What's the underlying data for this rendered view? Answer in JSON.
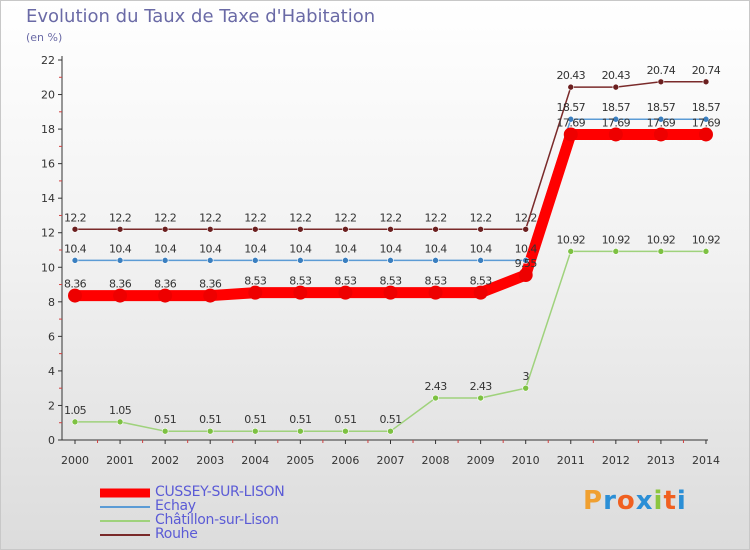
{
  "title": "Evolution du Taux de Taxe d'Habitation",
  "unit_label": "(en %)",
  "logo": {
    "text": "Proxiti",
    "letter_colors": [
      "#f0a030",
      "#2b8fd6",
      "#f06020",
      "#2b8fd6",
      "#8cc63f",
      "#f06020",
      "#2b8fd6"
    ]
  },
  "chart_data": {
    "type": "line",
    "title": "Evolution du Taux de Taxe d'Habitation",
    "ylabel": "(en %)",
    "xlabel": "",
    "ylim": [
      0,
      22
    ],
    "yticks": [
      0,
      2,
      4,
      6,
      8,
      10,
      12,
      14,
      16,
      18,
      20,
      22
    ],
    "grid": false,
    "legend_position": "bottom-left",
    "categories": [
      "2000",
      "2001",
      "2002",
      "2003",
      "2004",
      "2005",
      "2006",
      "2007",
      "2008",
      "2009",
      "2010",
      "2011",
      "2012",
      "2013",
      "2014"
    ],
    "series": [
      {
        "name": "Rouhe",
        "color": "#7a2a2a",
        "marker_color": "#6b1f1f",
        "thick": false,
        "values": [
          12.2,
          12.2,
          12.2,
          12.2,
          12.2,
          12.2,
          12.2,
          12.2,
          12.2,
          12.2,
          12.2,
          20.43,
          20.43,
          20.74,
          20.74
        ],
        "labels": [
          "12.2",
          "12.2",
          "12.2",
          "12.2",
          "12.2",
          "12.2",
          "12.2",
          "12.2",
          "12.2",
          "12.2",
          "12.2",
          "20.43",
          "20.43",
          "20.74",
          "20.74"
        ]
      },
      {
        "name": "Echay",
        "color": "#5b9bd5",
        "marker_color": "#3a7fc0",
        "thick": false,
        "values": [
          10.4,
          10.4,
          10.4,
          10.4,
          10.4,
          10.4,
          10.4,
          10.4,
          10.4,
          10.4,
          10.4,
          18.57,
          18.57,
          18.57,
          18.57
        ],
        "labels": [
          "10.4",
          "10.4",
          "10.4",
          "10.4",
          "10.4",
          "10.4",
          "10.4",
          "10.4",
          "10.4",
          "10.4",
          "10.4",
          "18.57",
          "18.57",
          "18.57",
          "18.57"
        ]
      },
      {
        "name": "Châtillon-sur-Lison",
        "color": "#9fd27c",
        "marker_color": "#7dc142",
        "thick": false,
        "values": [
          1.05,
          1.05,
          0.51,
          0.51,
          0.51,
          0.51,
          0.51,
          0.51,
          2.43,
          2.43,
          3,
          10.92,
          10.92,
          10.92,
          10.92
        ],
        "labels": [
          "1.05",
          "1.05",
          "0.51",
          "0.51",
          "0.51",
          "0.51",
          "0.51",
          "0.51",
          "2.43",
          "2.43",
          "3",
          "10.92",
          "10.92",
          "10.92",
          "10.92"
        ]
      },
      {
        "name": "CUSSEY-SUR-LISON",
        "color": "#ff0000",
        "marker_color": "#ee0000",
        "thick": true,
        "values": [
          8.36,
          8.36,
          8.36,
          8.36,
          8.53,
          8.53,
          8.53,
          8.53,
          8.53,
          8.53,
          9.55,
          17.69,
          17.69,
          17.69,
          17.69
        ],
        "labels": [
          "8.36",
          "8.36",
          "8.36",
          "8.36",
          "8.53",
          "8.53",
          "8.53",
          "8.53",
          "8.53",
          "8.53",
          "9.55",
          "17.69",
          "17.69",
          "17.69",
          "17.69"
        ]
      }
    ],
    "legend": [
      {
        "name": "CUSSEY-SUR-LISON",
        "color": "#ff0000",
        "thick": true
      },
      {
        "name": "Echay",
        "color": "#5b9bd5",
        "thick": false
      },
      {
        "name": "Châtillon-sur-Lison",
        "color": "#9fd27c",
        "thick": false
      },
      {
        "name": "Rouhe",
        "color": "#7a2a2a",
        "thick": false
      }
    ]
  }
}
